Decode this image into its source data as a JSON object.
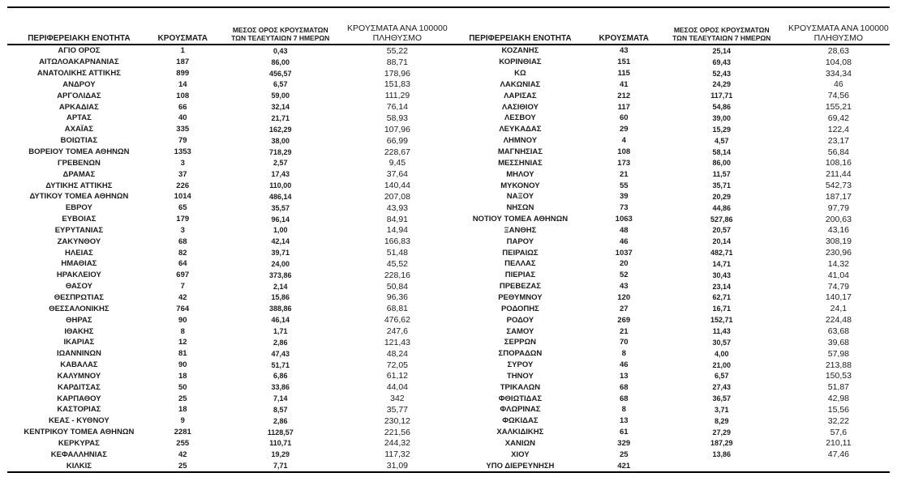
{
  "colors": {
    "background": "#ffffff",
    "text": "#1c1c1c",
    "rule_line": "#000000"
  },
  "table": {
    "headers": {
      "region": "ΠΕΡΙΦΕΡΕΙΑΚΗ ΕΝΟΤΗΤΑ",
      "cases": "ΚΡΟΥΣΜΑΤΑ",
      "avg7_line1": "ΜΕΣΟΣ ΟΡΟΣ ΚΡΟΥΣΜΑΤΩΝ",
      "avg7_line2": "ΤΩΝ ΤΕΛΕΥΤΑΙΩΝ 7 ΗΜΕΡΩΝ",
      "per100k_line1": "ΚΡΟΥΣΜΑΤΑ ΑΝΑ 100000",
      "per100k_line2": "ΠΛΗΘΥΣΜΟ"
    },
    "left_rows": [
      [
        "ΑΓΙΟ ΟΡΟΣ",
        "1",
        "0,43",
        "55,22"
      ],
      [
        "ΑΙΤΩΛΟΑΚΑΡΝΑΝΙΑΣ",
        "187",
        "86,00",
        "88,71"
      ],
      [
        "ΑΝΑΤΟΛΙΚΗΣ ΑΤΤΙΚΗΣ",
        "899",
        "456,57",
        "178,96"
      ],
      [
        "ΑΝΔΡΟΥ",
        "14",
        "6,57",
        "151,83"
      ],
      [
        "ΑΡΓΟΛΙΔΑΣ",
        "108",
        "59,00",
        "111,29"
      ],
      [
        "ΑΡΚΑΔΙΑΣ",
        "66",
        "32,14",
        "76,14"
      ],
      [
        "ΑΡΤΑΣ",
        "40",
        "21,71",
        "58,93"
      ],
      [
        "ΑΧΑΪΑΣ",
        "335",
        "162,29",
        "107,96"
      ],
      [
        "ΒΟΙΩΤΙΑΣ",
        "79",
        "38,00",
        "66,99"
      ],
      [
        "ΒΟΡΕΙΟΥ ΤΟΜΕΑ ΑΘΗΝΩΝ",
        "1353",
        "718,29",
        "228,67"
      ],
      [
        "ΓΡΕΒΕΝΩΝ",
        "3",
        "2,57",
        "9,45"
      ],
      [
        "ΔΡΑΜΑΣ",
        "37",
        "17,43",
        "37,64"
      ],
      [
        "ΔΥΤΙΚΗΣ ΑΤΤΙΚΗΣ",
        "226",
        "110,00",
        "140,44"
      ],
      [
        "ΔΥΤΙΚΟΥ ΤΟΜΕΑ ΑΘΗΝΩΝ",
        "1014",
        "486,14",
        "207,08"
      ],
      [
        "ΕΒΡΟΥ",
        "65",
        "35,57",
        "43,93"
      ],
      [
        "ΕΥΒΟΙΑΣ",
        "179",
        "96,14",
        "84,91"
      ],
      [
        "ΕΥΡΥΤΑΝΙΑΣ",
        "3",
        "1,00",
        "14,94"
      ],
      [
        "ΖΑΚΥΝΘΟΥ",
        "68",
        "42,14",
        "166,83"
      ],
      [
        "ΗΛΕΙΑΣ",
        "82",
        "39,71",
        "51,48"
      ],
      [
        "ΗΜΑΘΙΑΣ",
        "64",
        "24,00",
        "45,52"
      ],
      [
        "ΗΡΑΚΛΕΙΟΥ",
        "697",
        "373,86",
        "228,16"
      ],
      [
        "ΘΑΣΟΥ",
        "7",
        "2,14",
        "50,84"
      ],
      [
        "ΘΕΣΠΡΩΤΙΑΣ",
        "42",
        "15,86",
        "96,36"
      ],
      [
        "ΘΕΣΣΑΛΟΝΙΚΗΣ",
        "764",
        "388,86",
        "68,81"
      ],
      [
        "ΘΗΡΑΣ",
        "90",
        "46,14",
        "476,62"
      ],
      [
        "ΙΘΑΚΗΣ",
        "8",
        "1,71",
        "247,6"
      ],
      [
        "ΙΚΑΡΙΑΣ",
        "12",
        "2,86",
        "121,43"
      ],
      [
        "ΙΩΑΝΝΙΝΩΝ",
        "81",
        "47,43",
        "48,24"
      ],
      [
        "ΚΑΒΑΛΑΣ",
        "90",
        "51,71",
        "72,05"
      ],
      [
        "ΚΑΛΥΜΝΟΥ",
        "18",
        "6,86",
        "61,12"
      ],
      [
        "ΚΑΡΔΙΤΣΑΣ",
        "50",
        "33,86",
        "44,04"
      ],
      [
        "ΚΑΡΠΑΘΟΥ",
        "25",
        "7,14",
        "342"
      ],
      [
        "ΚΑΣΤΟΡΙΑΣ",
        "18",
        "8,57",
        "35,77"
      ],
      [
        "ΚΕΑΣ - ΚΥΘΝΟΥ",
        "9",
        "2,86",
        "230,12"
      ],
      [
        "ΚΕΝΤΡΙΚΟΥ ΤΟΜΕΑ ΑΘΗΝΩΝ",
        "2281",
        "1128,57",
        "221,56"
      ],
      [
        "ΚΕΡΚΥΡΑΣ",
        "255",
        "110,71",
        "244,32"
      ],
      [
        "ΚΕΦΑΛΛΗΝΙΑΣ",
        "42",
        "19,29",
        "117,32"
      ],
      [
        "ΚΙΛΚΙΣ",
        "25",
        "7,71",
        "31,09"
      ]
    ],
    "right_rows": [
      [
        "ΚΟΖΑΝΗΣ",
        "43",
        "25,14",
        "28,63"
      ],
      [
        "ΚΟΡΙΝΘΙΑΣ",
        "151",
        "69,43",
        "104,08"
      ],
      [
        "ΚΩ",
        "115",
        "52,43",
        "334,34"
      ],
      [
        "ΛΑΚΩΝΙΑΣ",
        "41",
        "24,29",
        "46"
      ],
      [
        "ΛΑΡΙΣΑΣ",
        "212",
        "117,71",
        "74,56"
      ],
      [
        "ΛΑΣΙΘΙΟΥ",
        "117",
        "54,86",
        "155,21"
      ],
      [
        "ΛΕΣΒΟΥ",
        "60",
        "39,00",
        "69,42"
      ],
      [
        "ΛΕΥΚΑΔΑΣ",
        "29",
        "15,29",
        "122,4"
      ],
      [
        "ΛΗΜΝΟΥ",
        "4",
        "4,57",
        "23,17"
      ],
      [
        "ΜΑΓΝΗΣΙΑΣ",
        "108",
        "58,14",
        "56,84"
      ],
      [
        "ΜΕΣΣΗΝΙΑΣ",
        "173",
        "86,00",
        "108,16"
      ],
      [
        "ΜΗΛΟΥ",
        "21",
        "11,57",
        "211,44"
      ],
      [
        "ΜΥΚΟΝΟΥ",
        "55",
        "35,71",
        "542,73"
      ],
      [
        "ΝΑΞΟΥ",
        "39",
        "20,29",
        "187,17"
      ],
      [
        "ΝΗΣΩΝ",
        "73",
        "44,86",
        "97,79"
      ],
      [
        "ΝΟΤΙΟΥ ΤΟΜΕΑ ΑΘΗΝΩΝ",
        "1063",
        "527,86",
        "200,63"
      ],
      [
        "ΞΑΝΘΗΣ",
        "48",
        "20,57",
        "43,16"
      ],
      [
        "ΠΑΡΟΥ",
        "46",
        "20,14",
        "308,19"
      ],
      [
        "ΠΕΙΡΑΙΩΣ",
        "1037",
        "482,71",
        "230,96"
      ],
      [
        "ΠΕΛΛΑΣ",
        "20",
        "14,71",
        "14,32"
      ],
      [
        "ΠΙΕΡΙΑΣ",
        "52",
        "30,43",
        "41,04"
      ],
      [
        "ΠΡΕΒΕΖΑΣ",
        "43",
        "23,14",
        "74,79"
      ],
      [
        "ΡΕΘΥΜΝΟΥ",
        "120",
        "62,71",
        "140,17"
      ],
      [
        "ΡΟΔΟΠΗΣ",
        "27",
        "16,71",
        "24,1"
      ],
      [
        "ΡΟΔΟΥ",
        "269",
        "152,71",
        "224,48"
      ],
      [
        "ΣΑΜΟΥ",
        "21",
        "11,43",
        "63,68"
      ],
      [
        "ΣΕΡΡΩΝ",
        "70",
        "30,57",
        "39,68"
      ],
      [
        "ΣΠΟΡΑΔΩΝ",
        "8",
        "4,00",
        "57,98"
      ],
      [
        "ΣΥΡΟΥ",
        "46",
        "21,00",
        "213,88"
      ],
      [
        "ΤΗΝΟΥ",
        "13",
        "6,57",
        "150,53"
      ],
      [
        "ΤΡΙΚΑΛΩΝ",
        "68",
        "27,43",
        "51,87"
      ],
      [
        "ΦΘΙΩΤΙΔΑΣ",
        "68",
        "36,57",
        "42,98"
      ],
      [
        "ΦΛΩΡΙΝΑΣ",
        "8",
        "3,71",
        "15,56"
      ],
      [
        "ΦΩΚΙΔΑΣ",
        "13",
        "8,29",
        "32,22"
      ],
      [
        "ΧΑΛΚΙΔΙΚΗΣ",
        "61",
        "27,29",
        "57,6"
      ],
      [
        "ΧΑΝΙΩΝ",
        "329",
        "187,29",
        "210,11"
      ],
      [
        "ΧΙΟΥ",
        "25",
        "13,86",
        "47,46"
      ],
      [
        "ΥΠΟ ΔΙΕΡΕΥΝΗΣΗ",
        "421",
        "",
        ""
      ]
    ]
  }
}
